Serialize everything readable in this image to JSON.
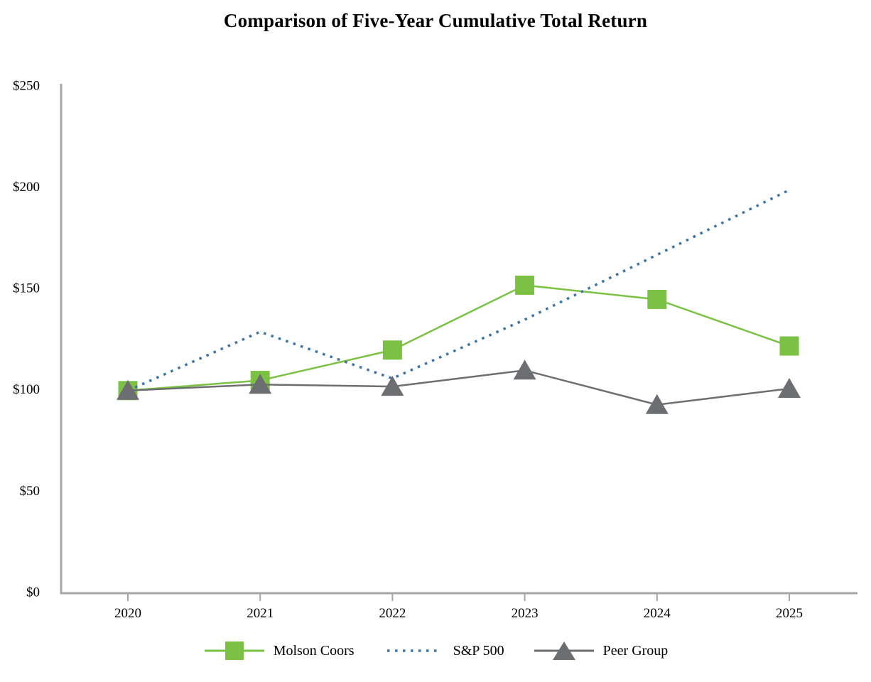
{
  "page": {
    "background": "#ffffff"
  },
  "chart_data": {
    "type": "line",
    "title": "Comparison of Five-Year Cumulative Total Return",
    "categories": [
      "2020",
      "2021",
      "2022",
      "2023",
      "2024",
      "2025"
    ],
    "series": [
      {
        "name": "Molson Coors",
        "values": [
          100,
          105,
          120,
          152,
          145,
          122
        ],
        "color": "#7bc143",
        "marker": "square",
        "line_style": "solid"
      },
      {
        "name": "S&P 500",
        "values": [
          100,
          129,
          106,
          135,
          167,
          199
        ],
        "color": "#3c74a6",
        "marker": "none",
        "line_style": "dotted"
      },
      {
        "name": "Peer Group",
        "values": [
          100,
          103,
          102,
          110,
          93,
          101
        ],
        "color": "#6d6e71",
        "marker": "triangle",
        "line_style": "solid"
      }
    ],
    "xlabel": "",
    "ylabel": "",
    "ylim": [
      0,
      250
    ],
    "ytick_step": 50,
    "ytick_labels": [
      "$0",
      "$50",
      "$100",
      "$150",
      "$200",
      "$250"
    ],
    "grid": false,
    "legend_position": "bottom",
    "axis_color": "#a6a6a6",
    "text_color": "#000000"
  }
}
